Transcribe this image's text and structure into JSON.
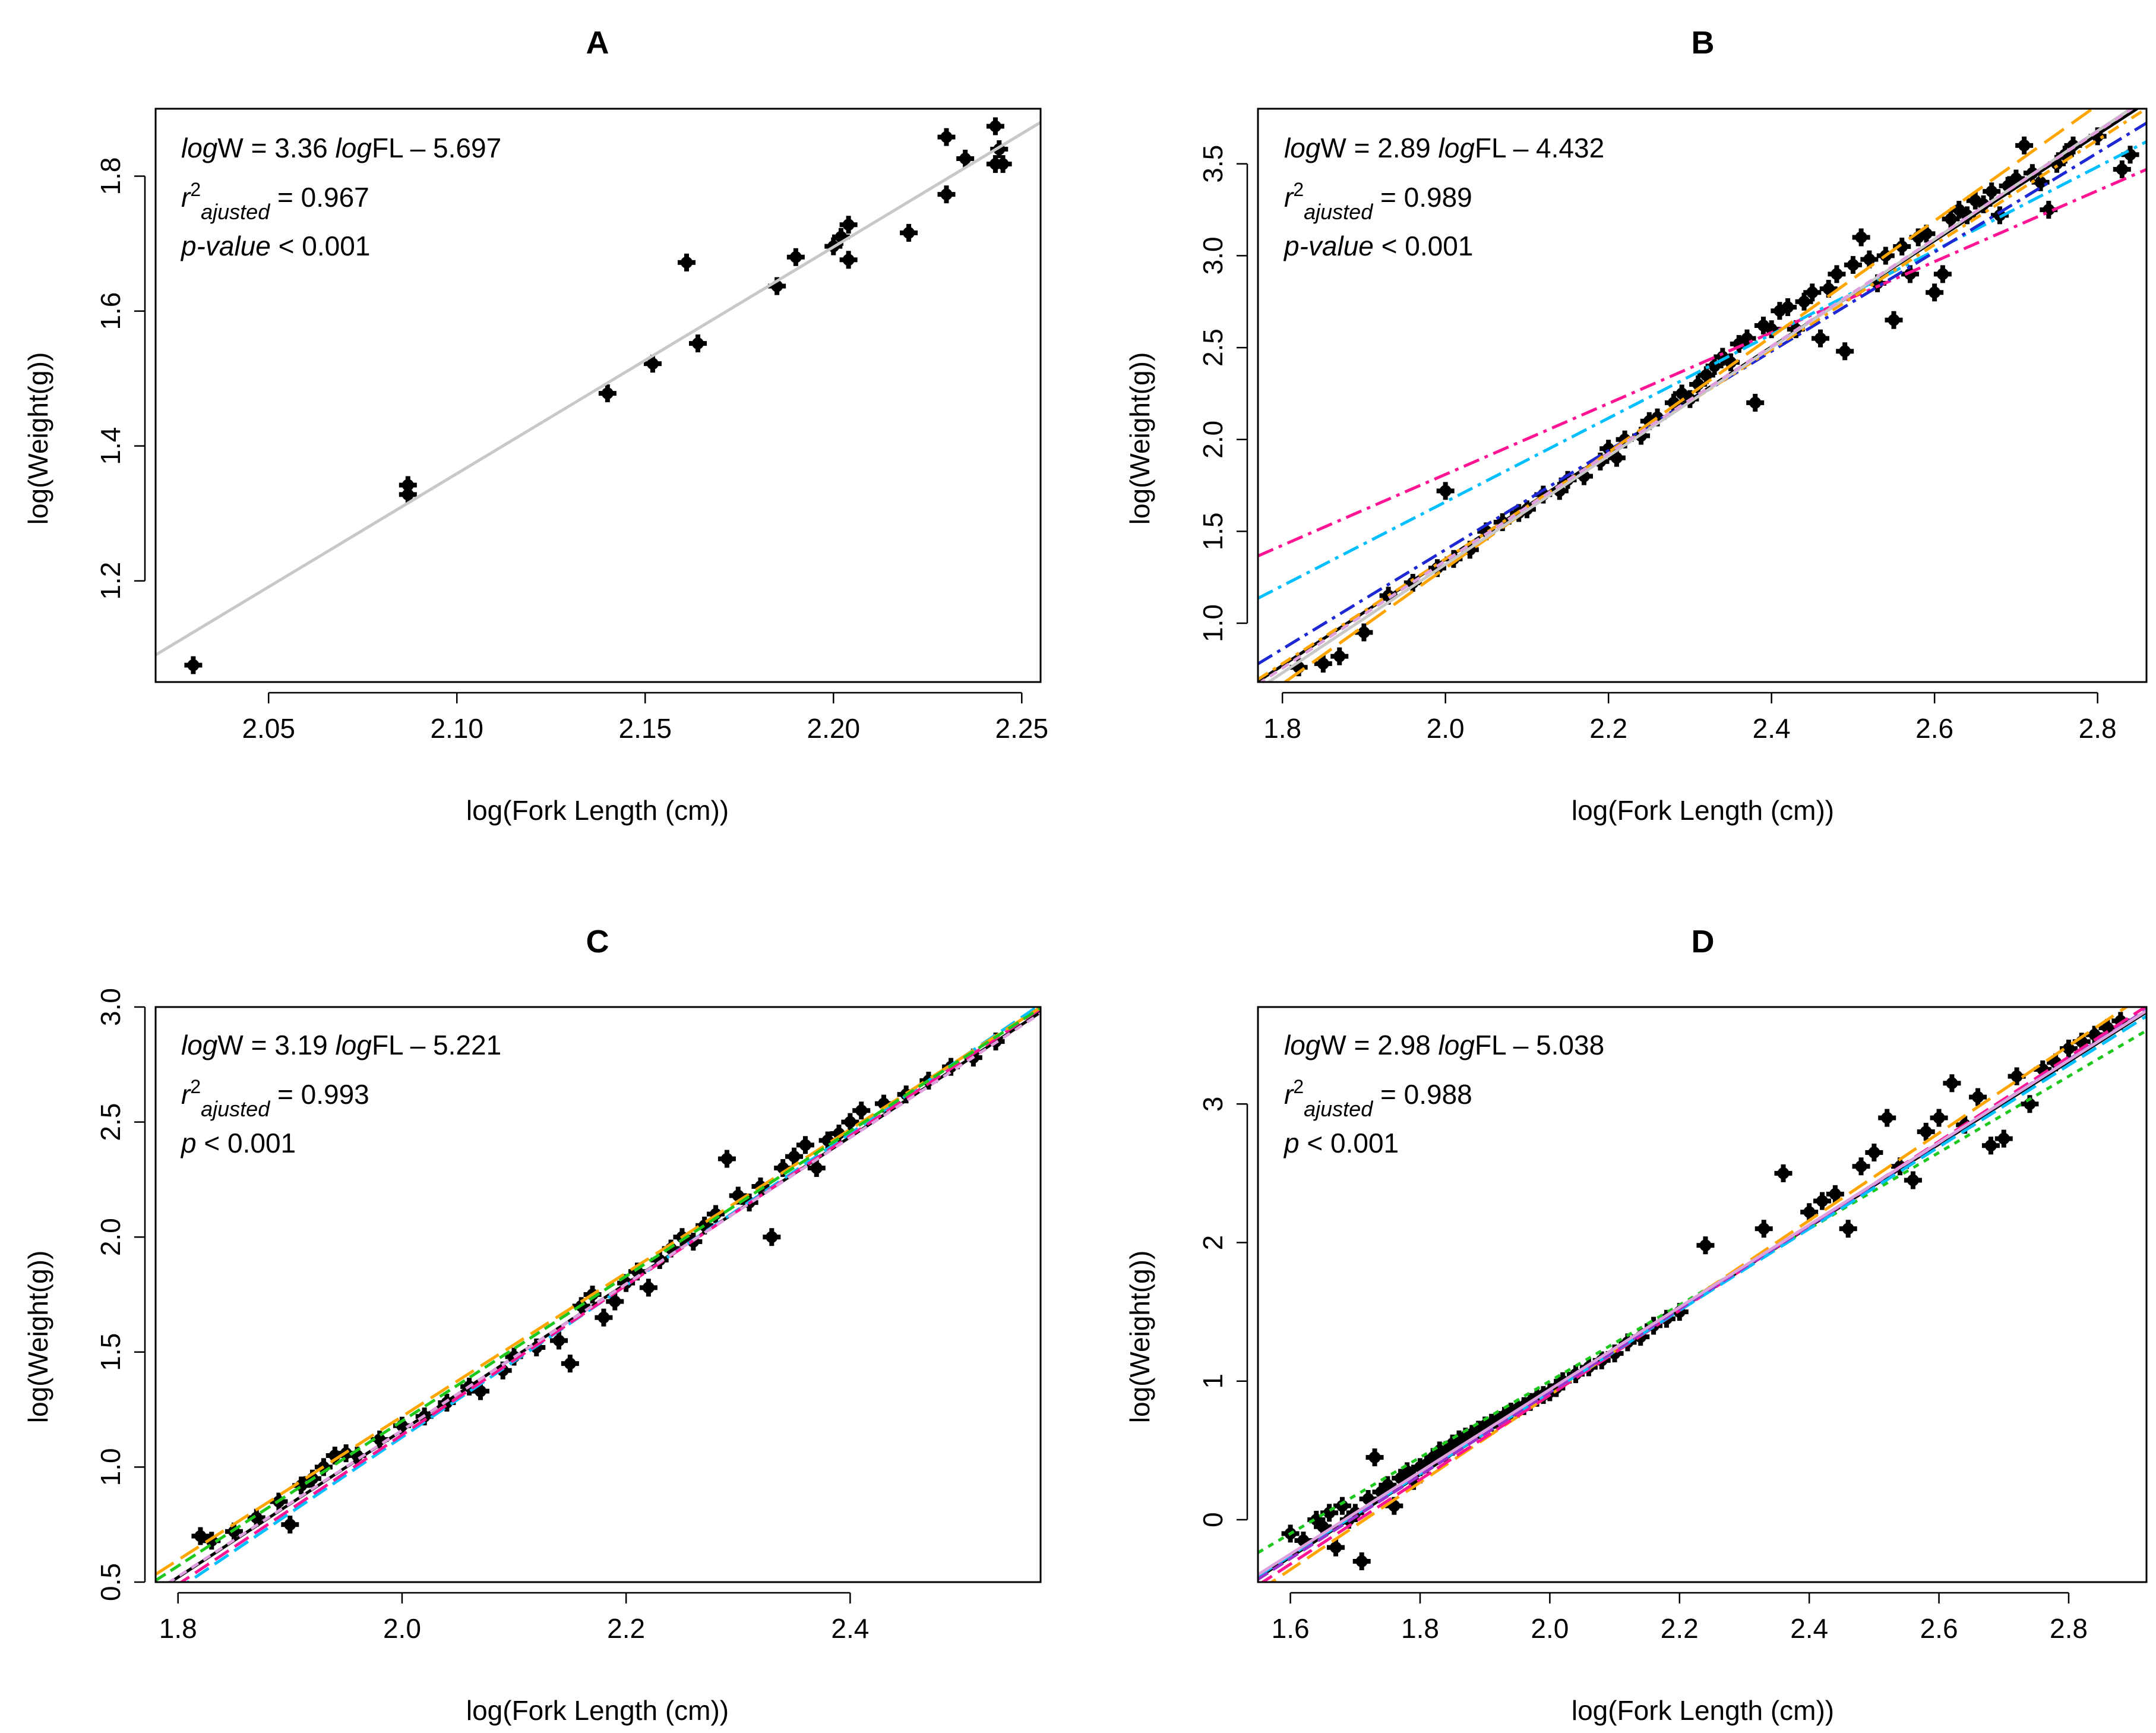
{
  "colors": {
    "pink": "#ff1493",
    "cyan": "#00bfff",
    "blue": "#1e28d2",
    "orange": "#ffa500",
    "green": "#1ec81e",
    "violet": "#9932cc",
    "grey": "#c8c8c8",
    "lightpink": "#ffb6c1",
    "plum": "#dda0dd",
    "black": "#000000"
  },
  "chart_data": [
    {
      "panel": "A",
      "type": "scatter",
      "title": "A",
      "xlabel": "log(Fork Length (cm))",
      "ylabel": "log(Weight(g))",
      "xlim": [
        2.02,
        2.255
      ],
      "ylim": [
        1.05,
        1.9
      ],
      "xticks": [
        "2.05",
        "2.10",
        "2.15",
        "2.20",
        "2.25"
      ],
      "yticks": [
        "1.2",
        "1.4",
        "1.6",
        "1.8"
      ],
      "eq_prefix": "log",
      "eq_mid1": "W = 3.36 ",
      "eq_mid2": "log",
      "eq_tail": "FL – 5.697",
      "r_base": "r",
      "r_sup": "2",
      "r_sub": "ajusted",
      "r_val": " = 0.967",
      "p_label": "p-value",
      "p_val": " < 0.001",
      "points": [
        [
          2.03,
          1.075
        ],
        [
          2.087,
          1.342
        ],
        [
          2.087,
          1.328
        ],
        [
          2.14,
          1.478
        ],
        [
          2.152,
          1.522
        ],
        [
          2.161,
          1.672
        ],
        [
          2.164,
          1.552
        ],
        [
          2.185,
          1.637
        ],
        [
          2.19,
          1.68
        ],
        [
          2.2,
          1.696
        ],
        [
          2.202,
          1.71
        ],
        [
          2.204,
          1.728
        ],
        [
          2.204,
          1.676
        ],
        [
          2.22,
          1.716
        ],
        [
          2.23,
          1.858
        ],
        [
          2.23,
          1.773
        ],
        [
          2.235,
          1.826
        ],
        [
          2.243,
          1.874
        ],
        [
          2.243,
          1.818
        ],
        [
          2.244,
          1.84
        ],
        [
          2.245,
          1.818
        ]
      ],
      "fits": [
        {
          "a": 3.36,
          "b": -5.697,
          "color": "#c8c8c8",
          "dash": "",
          "range": [
            2.02,
            2.255
          ]
        }
      ]
    },
    {
      "panel": "B",
      "type": "scatter",
      "title": "B",
      "xlabel": "log(Fork Length (cm))",
      "ylabel": "log(Weight(g))",
      "xlim": [
        1.77,
        2.86
      ],
      "ylim": [
        0.68,
        3.8
      ],
      "xticks": [
        "1.8",
        "2.0",
        "2.2",
        "2.4",
        "2.6",
        "2.8"
      ],
      "yticks": [
        "1.0",
        "1.5",
        "2.0",
        "2.5",
        "3.0",
        "3.5"
      ],
      "eq_prefix": "log",
      "eq_mid1": "W = 2.89 ",
      "eq_mid2": "log",
      "eq_tail": "FL – 4.432",
      "r_base": "r",
      "r_sup": "2",
      "r_sub": "ajusted",
      "r_val": " = 0.989",
      "p_label": "p-value",
      "p_val": " < 0.001",
      "points": [
        [
          1.82,
          0.76
        ],
        [
          1.85,
          0.78
        ],
        [
          1.87,
          0.82
        ],
        [
          1.9,
          0.95
        ],
        [
          1.93,
          1.15
        ],
        [
          1.96,
          1.22
        ],
        [
          1.99,
          1.3
        ],
        [
          2.0,
          1.72
        ],
        [
          2.01,
          1.35
        ],
        [
          2.03,
          1.4
        ],
        [
          2.05,
          1.5
        ],
        [
          2.07,
          1.55
        ],
        [
          2.09,
          1.6
        ],
        [
          2.1,
          1.62
        ],
        [
          2.12,
          1.7
        ],
        [
          2.14,
          1.72
        ],
        [
          2.15,
          1.78
        ],
        [
          2.17,
          1.8
        ],
        [
          2.19,
          1.88
        ],
        [
          2.2,
          1.95
        ],
        [
          2.21,
          1.9
        ],
        [
          2.22,
          2.0
        ],
        [
          2.24,
          2.02
        ],
        [
          2.25,
          2.1
        ],
        [
          2.26,
          2.12
        ],
        [
          2.28,
          2.2
        ],
        [
          2.29,
          2.25
        ],
        [
          2.3,
          2.22
        ],
        [
          2.31,
          2.3
        ],
        [
          2.32,
          2.35
        ],
        [
          2.33,
          2.4
        ],
        [
          2.34,
          2.45
        ],
        [
          2.35,
          2.42
        ],
        [
          2.36,
          2.52
        ],
        [
          2.37,
          2.55
        ],
        [
          2.38,
          2.2
        ],
        [
          2.39,
          2.62
        ],
        [
          2.4,
          2.6
        ],
        [
          2.41,
          2.7
        ],
        [
          2.42,
          2.72
        ],
        [
          2.43,
          2.6
        ],
        [
          2.44,
          2.75
        ],
        [
          2.45,
          2.8
        ],
        [
          2.46,
          2.55
        ],
        [
          2.47,
          2.82
        ],
        [
          2.48,
          2.9
        ],
        [
          2.49,
          2.48
        ],
        [
          2.5,
          2.95
        ],
        [
          2.51,
          3.1
        ],
        [
          2.52,
          2.98
        ],
        [
          2.53,
          2.85
        ],
        [
          2.54,
          3.0
        ],
        [
          2.55,
          2.65
        ],
        [
          2.56,
          3.05
        ],
        [
          2.57,
          2.9
        ],
        [
          2.58,
          3.1
        ],
        [
          2.59,
          3.12
        ],
        [
          2.6,
          2.8
        ],
        [
          2.61,
          2.9
        ],
        [
          2.62,
          3.2
        ],
        [
          2.63,
          3.25
        ],
        [
          2.64,
          3.22
        ],
        [
          2.65,
          3.3
        ],
        [
          2.66,
          3.28
        ],
        [
          2.67,
          3.35
        ],
        [
          2.68,
          3.22
        ],
        [
          2.69,
          3.38
        ],
        [
          2.7,
          3.42
        ],
        [
          2.71,
          3.6
        ],
        [
          2.72,
          3.45
        ],
        [
          2.73,
          3.4
        ],
        [
          2.74,
          3.25
        ],
        [
          2.75,
          3.5
        ],
        [
          2.76,
          3.55
        ],
        [
          2.77,
          3.6
        ],
        [
          2.8,
          3.65
        ],
        [
          2.83,
          3.47
        ],
        [
          2.84,
          3.55
        ]
      ],
      "fits": [
        {
          "a": 2.89,
          "b": -4.432,
          "color": "#000000",
          "dash": "",
          "range": [
            1.77,
            2.86
          ]
        },
        {
          "a": 1.93,
          "b": -2.05,
          "color": "#ff1493",
          "dash": "28,10,6,10",
          "range": [
            1.77,
            2.86
          ]
        },
        {
          "a": 2.28,
          "b": -2.9,
          "color": "#00bfff",
          "dash": "28,10,6,10",
          "range": [
            1.77,
            2.86
          ]
        },
        {
          "a": 2.7,
          "b": -4.0,
          "color": "#1e28d2",
          "dash": "28,10,6,10",
          "range": [
            1.77,
            2.86
          ]
        },
        {
          "a": 2.85,
          "b": -4.35,
          "color": "#ffa500",
          "dash": "20,10,6,10",
          "range": [
            1.77,
            2.86
          ]
        },
        {
          "a": 3.15,
          "b": -5.0,
          "color": "#ffa500",
          "dash": "40,16",
          "range": [
            1.77,
            2.86
          ]
        },
        {
          "a": 2.95,
          "b": -4.58,
          "color": "#c8c8c8",
          "dash": "",
          "range": [
            1.77,
            2.86
          ]
        },
        {
          "a": 2.92,
          "b": -4.5,
          "color": "#dda0dd",
          "dash": "14,10",
          "range": [
            1.77,
            2.86
          ]
        }
      ]
    },
    {
      "panel": "C",
      "type": "scatter",
      "title": "C",
      "xlabel": "log(Fork Length (cm))",
      "ylabel": "log(Weight(g))",
      "xlim": [
        1.78,
        2.57
      ],
      "ylim": [
        0.5,
        3.0
      ],
      "xticks": [
        "1.8",
        "2.0",
        "2.2",
        "2.4"
      ],
      "yticks": [
        "0.5",
        "1.0",
        "1.5",
        "2.0",
        "2.5",
        "3.0"
      ],
      "eq_prefix": "log",
      "eq_mid1": "W = 3.19 ",
      "eq_mid2": "log",
      "eq_tail": "FL – 5.221",
      "r_base": "r",
      "r_sup": "2",
      "r_sub": "ajusted",
      "r_val": " = 0.993",
      "p_label": "p",
      "p_val": " < 0.001",
      "points": [
        [
          1.82,
          0.7
        ],
        [
          1.83,
          0.68
        ],
        [
          1.85,
          0.72
        ],
        [
          1.87,
          0.78
        ],
        [
          1.89,
          0.85
        ],
        [
          1.9,
          0.75
        ],
        [
          1.91,
          0.92
        ],
        [
          1.92,
          0.95
        ],
        [
          1.93,
          1.0
        ],
        [
          1.94,
          1.05
        ],
        [
          1.95,
          1.06
        ],
        [
          1.96,
          1.05
        ],
        [
          1.98,
          1.12
        ],
        [
          2.0,
          1.18
        ],
        [
          2.02,
          1.22
        ],
        [
          2.04,
          1.28
        ],
        [
          2.06,
          1.35
        ],
        [
          2.07,
          1.33
        ],
        [
          2.09,
          1.42
        ],
        [
          2.1,
          1.48
        ],
        [
          2.12,
          1.52
        ],
        [
          2.14,
          1.55
        ],
        [
          2.15,
          1.45
        ],
        [
          2.16,
          1.7
        ],
        [
          2.17,
          1.75
        ],
        [
          2.18,
          1.65
        ],
        [
          2.19,
          1.72
        ],
        [
          2.2,
          1.8
        ],
        [
          2.21,
          1.85
        ],
        [
          2.22,
          1.78
        ],
        [
          2.23,
          1.9
        ],
        [
          2.24,
          1.95
        ],
        [
          2.25,
          2.0
        ],
        [
          2.26,
          1.98
        ],
        [
          2.27,
          2.05
        ],
        [
          2.28,
          2.1
        ],
        [
          2.29,
          2.34
        ],
        [
          2.3,
          2.18
        ],
        [
          2.31,
          2.15
        ],
        [
          2.32,
          2.22
        ],
        [
          2.33,
          2.0
        ],
        [
          2.34,
          2.3
        ],
        [
          2.35,
          2.35
        ],
        [
          2.36,
          2.4
        ],
        [
          2.37,
          2.3
        ],
        [
          2.38,
          2.42
        ],
        [
          2.39,
          2.45
        ],
        [
          2.4,
          2.5
        ],
        [
          2.41,
          2.55
        ],
        [
          2.43,
          2.58
        ],
        [
          2.45,
          2.62
        ],
        [
          2.47,
          2.68
        ],
        [
          2.49,
          2.74
        ],
        [
          2.51,
          2.78
        ],
        [
          2.53,
          2.85
        ]
      ],
      "fits": [
        {
          "a": 3.19,
          "b": -5.221,
          "color": "#000000",
          "dash": "",
          "range": [
            1.78,
            2.57
          ]
        },
        {
          "a": 3.3,
          "b": -5.47,
          "color": "#00bfff",
          "dash": "28,12",
          "range": [
            1.78,
            2.57
          ]
        },
        {
          "a": 3.25,
          "b": -5.36,
          "color": "#ff1493",
          "dash": "28,12",
          "range": [
            1.78,
            2.57
          ]
        },
        {
          "a": 3.12,
          "b": -5.02,
          "color": "#ffa500",
          "dash": "36,14",
          "range": [
            1.78,
            2.57
          ]
        },
        {
          "a": 3.15,
          "b": -5.1,
          "color": "#1ec81e",
          "dash": "20,10",
          "range": [
            1.78,
            2.57
          ]
        },
        {
          "a": 3.18,
          "b": -5.2,
          "color": "#dda0dd",
          "dash": "14,10",
          "range": [
            1.78,
            2.57
          ]
        }
      ]
    },
    {
      "panel": "D",
      "type": "scatter",
      "title": "D",
      "xlabel": "log(Fork Length (cm))",
      "ylabel": "log(Weight(g))",
      "xlim": [
        1.55,
        2.92
      ],
      "ylim": [
        -0.45,
        3.7
      ],
      "xticks": [
        "1.6",
        "1.8",
        "2.0",
        "2.2",
        "2.4",
        "2.6",
        "2.8"
      ],
      "yticks": [
        "0",
        "1",
        "2",
        "3"
      ],
      "eq_prefix": "log",
      "eq_mid1": "W = 2.98 ",
      "eq_mid2": "log",
      "eq_tail": "FL – 5.038",
      "r_base": "r",
      "r_sup": "2",
      "r_sub": "ajusted",
      "r_val": " = 0.988",
      "p_label": "p",
      "p_val": " < 0.001",
      "points": [
        [
          1.6,
          -0.1
        ],
        [
          1.62,
          -0.15
        ],
        [
          1.64,
          0.0
        ],
        [
          1.65,
          -0.05
        ],
        [
          1.66,
          0.05
        ],
        [
          1.67,
          -0.2
        ],
        [
          1.68,
          0.1
        ],
        [
          1.69,
          0.0
        ],
        [
          1.7,
          0.05
        ],
        [
          1.71,
          -0.3
        ],
        [
          1.72,
          0.15
        ],
        [
          1.73,
          0.45
        ],
        [
          1.74,
          0.2
        ],
        [
          1.75,
          0.25
        ],
        [
          1.76,
          0.1
        ],
        [
          1.77,
          0.3
        ],
        [
          1.78,
          0.35
        ],
        [
          1.79,
          0.28
        ],
        [
          1.8,
          0.38
        ],
        [
          1.81,
          0.4
        ],
        [
          1.82,
          0.45
        ],
        [
          1.83,
          0.5
        ],
        [
          1.84,
          0.48
        ],
        [
          1.85,
          0.55
        ],
        [
          1.86,
          0.58
        ],
        [
          1.87,
          0.6
        ],
        [
          1.88,
          0.62
        ],
        [
          1.89,
          0.65
        ],
        [
          1.9,
          0.68
        ],
        [
          1.91,
          0.7
        ],
        [
          1.92,
          0.72
        ],
        [
          1.93,
          0.75
        ],
        [
          1.94,
          0.78
        ],
        [
          1.95,
          0.8
        ],
        [
          1.96,
          0.82
        ],
        [
          1.97,
          0.85
        ],
        [
          1.98,
          0.88
        ],
        [
          1.99,
          0.9
        ],
        [
          2.0,
          0.92
        ],
        [
          2.01,
          0.95
        ],
        [
          2.02,
          1.0
        ],
        [
          2.04,
          1.05
        ],
        [
          2.06,
          1.1
        ],
        [
          2.08,
          1.15
        ],
        [
          2.1,
          1.2
        ],
        [
          2.12,
          1.28
        ],
        [
          2.14,
          1.32
        ],
        [
          2.16,
          1.4
        ],
        [
          2.18,
          1.45
        ],
        [
          2.2,
          1.5
        ],
        [
          2.24,
          1.98
        ],
        [
          2.33,
          2.1
        ],
        [
          2.36,
          2.5
        ],
        [
          2.4,
          2.22
        ],
        [
          2.42,
          2.3
        ],
        [
          2.44,
          2.35
        ],
        [
          2.46,
          2.1
        ],
        [
          2.48,
          2.55
        ],
        [
          2.5,
          2.65
        ],
        [
          2.52,
          2.9
        ],
        [
          2.54,
          2.55
        ],
        [
          2.56,
          2.45
        ],
        [
          2.58,
          2.8
        ],
        [
          2.6,
          2.9
        ],
        [
          2.62,
          3.15
        ],
        [
          2.64,
          2.85
        ],
        [
          2.66,
          3.05
        ],
        [
          2.68,
          2.7
        ],
        [
          2.7,
          2.75
        ],
        [
          2.72,
          3.2
        ],
        [
          2.74,
          3.0
        ],
        [
          2.76,
          3.25
        ],
        [
          2.78,
          3.3
        ],
        [
          2.8,
          3.4
        ],
        [
          2.82,
          3.45
        ],
        [
          2.84,
          3.5
        ],
        [
          2.86,
          3.55
        ],
        [
          2.88,
          3.6
        ]
      ],
      "fits": [
        {
          "a": 2.98,
          "b": -5.038,
          "color": "#000000",
          "dash": "",
          "range": [
            1.55,
            2.92
          ]
        },
        {
          "a": 2.75,
          "b": -4.5,
          "color": "#1ec81e",
          "dash": "10,10",
          "range": [
            1.55,
            2.92
          ]
        },
        {
          "a": 3.15,
          "b": -5.4,
          "color": "#ffa500",
          "dash": "36,14",
          "range": [
            1.55,
            2.92
          ]
        },
        {
          "a": 3.05,
          "b": -5.2,
          "color": "#ff1493",
          "dash": "28,12",
          "range": [
            1.55,
            2.92
          ]
        },
        {
          "a": 2.95,
          "b": -4.98,
          "color": "#00bfff",
          "dash": "28,12",
          "range": [
            1.55,
            2.92
          ]
        },
        {
          "a": 3.0,
          "b": -5.08,
          "color": "#9932cc",
          "dash": "20,10",
          "range": [
            1.55,
            2.92
          ]
        },
        {
          "a": 2.97,
          "b": -5.0,
          "color": "#dda0dd",
          "dash": "",
          "range": [
            1.55,
            2.92
          ]
        }
      ]
    }
  ]
}
